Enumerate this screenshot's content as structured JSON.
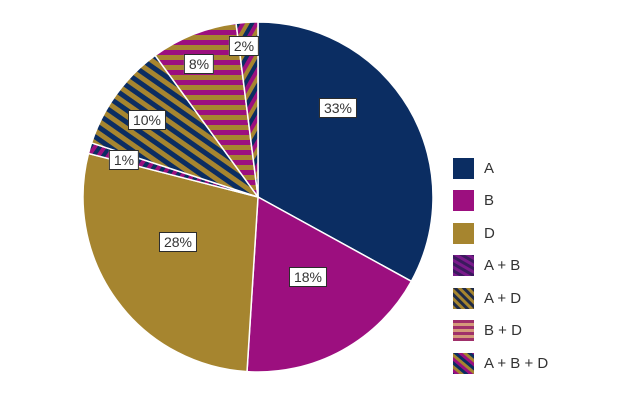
{
  "chart_data": {
    "type": "pie",
    "title": "",
    "start_angle_deg": 0,
    "direction": "clockwise",
    "categories": [
      "A",
      "B",
      "D",
      "A + B",
      "A + D",
      "B + D",
      "A + B + D"
    ],
    "values": [
      33,
      18,
      28,
      1,
      10,
      8,
      2
    ],
    "value_labels": [
      "33%",
      "18%",
      "28%",
      "1%",
      "10%",
      "8%",
      "2%"
    ],
    "colors": {
      "A": "#0b2d62",
      "B": "#9c0f7f",
      "D": "#a6852f",
      "A + B": "striped #0b2d62/#9c0f7f diagonal",
      "A + D": "striped #0b2d62/#a6852f diagonal",
      "B + D": "striped #9c0f7f/#a6852f horizontal",
      "A + B + D": "striped #0b2d62/#9c0f7f/#a6852f diagonal"
    },
    "legend_position": "right",
    "legend": [
      "A",
      "B",
      "D",
      "A + B",
      "A + D",
      "B + D",
      "A + B + D"
    ]
  },
  "legend": {
    "items": [
      {
        "label": "A"
      },
      {
        "label": "B"
      },
      {
        "label": "D"
      },
      {
        "label": "A + B"
      },
      {
        "label": "A + D"
      },
      {
        "label": "B + D"
      },
      {
        "label": "A + B + D"
      }
    ]
  },
  "labels": {
    "a": "33%",
    "b": "18%",
    "d": "28%",
    "ab": "1%",
    "ad": "10%",
    "bd": "8%",
    "abd": "2%"
  }
}
